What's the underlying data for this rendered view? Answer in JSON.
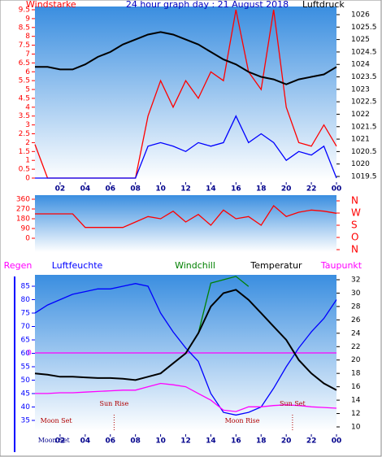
{
  "chart_data": [
    {
      "type": "line",
      "title": "24 hour graph day : 21 August 2018",
      "ylabel": "Windstarke",
      "y2label": "Luftdruck",
      "x": [
        0,
        1,
        2,
        3,
        4,
        5,
        6,
        7,
        8,
        9,
        10,
        11,
        12,
        13,
        14,
        15,
        16,
        17,
        18,
        19,
        20,
        21,
        22,
        23,
        24
      ],
      "xlim": [
        0,
        24
      ],
      "xticks": [
        {
          "value": 2,
          "label": "02"
        },
        {
          "value": 4,
          "label": "04"
        },
        {
          "value": 6,
          "label": "06"
        },
        {
          "value": 8,
          "label": "08"
        },
        10,
        12,
        14,
        16,
        18,
        20,
        22,
        {
          "value": 24,
          "label": "00"
        }
      ],
      "ylim": [
        0,
        9.5
      ],
      "yticks": [
        0,
        0.5,
        1,
        1.5,
        2,
        2.5,
        3,
        3.5,
        4,
        4.5,
        5,
        5.5,
        6,
        6.5,
        7,
        7.5,
        8,
        8.5,
        9,
        9.5
      ],
      "y2lim": [
        1019.5,
        1026
      ],
      "y2ticks": [
        1019.5,
        1020,
        1020.5,
        1021,
        1021.5,
        1022,
        1022.5,
        1023,
        1023.5,
        1024,
        1024.5,
        1025,
        1025.5,
        1026
      ],
      "series": [
        {
          "color": "#ff0000",
          "values": [
            1.9,
            0,
            0,
            0,
            0,
            0,
            0,
            0,
            0,
            3.5,
            5.5,
            4,
            5.5,
            4.5,
            6,
            5.5,
            9.5,
            6,
            5,
            9.5,
            4,
            2,
            1.8,
            3,
            1.8
          ]
        },
        {
          "color": "#0000ff",
          "values": [
            0,
            0,
            0,
            0,
            0,
            0,
            0,
            0,
            0,
            1.8,
            2,
            1.8,
            1.5,
            2,
            1.8,
            2,
            3.5,
            2,
            2.5,
            2,
            1,
            1.5,
            1.3,
            1.8,
            0
          ]
        },
        {
          "color": "#000000",
          "axis": "y2",
          "values": [
            1023.9,
            1023.9,
            1023.8,
            1023.8,
            1024,
            1024.3,
            1024.5,
            1024.8,
            1025,
            1025.2,
            1025.3,
            1025.2,
            1025,
            1024.8,
            1024.5,
            1024.2,
            1024,
            1023.7,
            1023.5,
            1023.4,
            1023.2,
            1023.4,
            1023.5,
            1023.6,
            1023.9
          ]
        }
      ]
    },
    {
      "type": "line",
      "x": [
        0,
        1,
        2,
        3,
        4,
        5,
        6,
        7,
        8,
        9,
        10,
        11,
        12,
        13,
        14,
        15,
        16,
        17,
        18,
        19,
        20,
        21,
        22,
        23,
        24
      ],
      "xlim": [
        0,
        24
      ],
      "ylim": [
        0,
        360
      ],
      "yticks": [
        0,
        90,
        180,
        270,
        360
      ],
      "y2lim": [
        0,
        360
      ],
      "y2ticks": [
        {
          "value": 360,
          "label": "N"
        },
        {
          "value": 270,
          "label": "W"
        },
        {
          "value": 180,
          "label": "S"
        },
        {
          "value": 90,
          "label": "O"
        },
        {
          "value": 0,
          "label": "N"
        }
      ],
      "series": [
        {
          "color": "#ff0000",
          "values": [
            225,
            225,
            225,
            225,
            100,
            100,
            100,
            100,
            150,
            200,
            180,
            250,
            150,
            220,
            120,
            260,
            180,
            200,
            120,
            300,
            200,
            240,
            260,
            250,
            230
          ]
        }
      ]
    },
    {
      "type": "line",
      "legend": [
        "Regen",
        "Luftfeuchte",
        "Windchill",
        "Temperatur",
        "Taupunkt"
      ],
      "x": [
        0,
        1,
        2,
        3,
        4,
        5,
        6,
        7,
        8,
        9,
        10,
        11,
        12,
        13,
        14,
        15,
        16,
        17,
        18,
        19,
        20,
        21,
        22,
        23,
        24
      ],
      "xlim": [
        0,
        24
      ],
      "xticks": [
        {
          "value": 2,
          "label": "02"
        },
        {
          "value": 4,
          "label": "04"
        },
        {
          "value": 6,
          "label": "06"
        },
        {
          "value": 8,
          "label": "08"
        },
        10,
        12,
        14,
        16,
        18,
        20,
        22,
        {
          "value": 24,
          "label": "00"
        }
      ],
      "ylim": [
        35,
        85
      ],
      "yticks": [
        35,
        40,
        45,
        50,
        55,
        60,
        65,
        70,
        75,
        80,
        85
      ],
      "y2lim": [
        10,
        32
      ],
      "y2ticks": [
        10,
        12,
        14,
        16,
        18,
        20,
        22,
        24,
        26,
        28,
        30,
        32
      ],
      "rainticks": [
        0
      ],
      "series": [
        {
          "name": "Regen",
          "color": "#ff00ff",
          "axis": "rain",
          "values": [
            0,
            0,
            0,
            0,
            0,
            0,
            0,
            0,
            0,
            0,
            0,
            0,
            0,
            0,
            0,
            0,
            0,
            0,
            0,
            0,
            0,
            0,
            0,
            0,
            0
          ]
        },
        {
          "name": "Luftfeuchte",
          "color": "#0000ff",
          "values": [
            75,
            78,
            80,
            82,
            83,
            84,
            84,
            85,
            86,
            85,
            75,
            68,
            62,
            57,
            45,
            38,
            37,
            38,
            40,
            47,
            55,
            62,
            68,
            73,
            80
          ]
        },
        {
          "name": "Windchill",
          "color": "#008000",
          "axis": "y2",
          "values": [
            null,
            null,
            null,
            null,
            null,
            null,
            null,
            null,
            null,
            null,
            null,
            null,
            null,
            24,
            31.5,
            32,
            32.5,
            31,
            null,
            null,
            null,
            null,
            null,
            null,
            null
          ]
        },
        {
          "name": "Temperatur",
          "color": "#000000",
          "axis": "y2",
          "values": [
            18,
            17.8,
            17.5,
            17.5,
            17.4,
            17.3,
            17.3,
            17.2,
            17,
            17.5,
            18,
            19.5,
            21,
            24,
            28,
            30,
            30.5,
            29,
            27,
            25,
            23,
            20,
            18,
            16.5,
            15.5
          ]
        },
        {
          "name": "Taupunkt",
          "color": "#ff00ff",
          "axis": "y2",
          "values": [
            15,
            15,
            15.1,
            15.1,
            15.2,
            15.3,
            15.4,
            15.5,
            15.5,
            16,
            16.5,
            16.3,
            16,
            15,
            14,
            12.5,
            12.3,
            13,
            13,
            13.2,
            13.3,
            13.2,
            13,
            12.9,
            12.8
          ]
        }
      ],
      "annotations": [
        {
          "text": "Sun Rise",
          "x": 6.3
        },
        {
          "text": "Sun Set",
          "x": 20.5
        },
        {
          "text": "Moon Set",
          "x": 0.3
        },
        {
          "text": "Moon Rise",
          "x": 16.5
        },
        {
          "text": "Moon Set",
          "x": 1.5
        }
      ]
    }
  ]
}
